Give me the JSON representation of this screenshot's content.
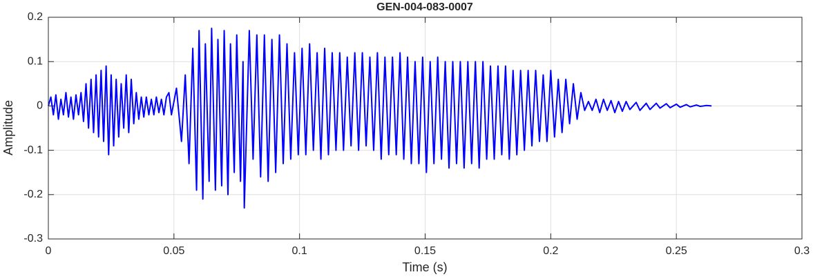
{
  "chart_data": {
    "type": "line",
    "title": "GEN-004-083-0007",
    "xlabel": "Time (s)",
    "ylabel": "Amplitude",
    "color": "#0000ff",
    "grid": true,
    "xlim": [
      0,
      0.3
    ],
    "xticks": [
      0,
      0.05,
      0.1,
      0.15,
      0.2,
      0.25,
      0.3
    ],
    "ylim": [
      -0.3,
      0.2
    ],
    "yticks": [
      -0.3,
      -0.2,
      -0.1,
      0,
      0.1,
      0.2
    ],
    "x": [
      0,
      0.001,
      0.002,
      0.003,
      0.004,
      0.005,
      0.006,
      0.007,
      0.008,
      0.009,
      0.01,
      0.011,
      0.012,
      0.013,
      0.014,
      0.015,
      0.016,
      0.017,
      0.018,
      0.019,
      0.02,
      0.021,
      0.022,
      0.023,
      0.024,
      0.025,
      0.026,
      0.027,
      0.028,
      0.029,
      0.03,
      0.031,
      0.032,
      0.033,
      0.034,
      0.035,
      0.036,
      0.037,
      0.038,
      0.039,
      0.04,
      0.041,
      0.042,
      0.043,
      0.044,
      0.045,
      0.046,
      0.047,
      0.048,
      0.049,
      0.051,
      0.053,
      0.0545,
      0.056,
      0.0575,
      0.059,
      0.06,
      0.0615,
      0.0625,
      0.064,
      0.065,
      0.0665,
      0.0675,
      0.069,
      0.07,
      0.0715,
      0.0725,
      0.074,
      0.075,
      0.0765,
      0.0775,
      0.078,
      0.08,
      0.0815,
      0.083,
      0.0845,
      0.086,
      0.0875,
      0.089,
      0.0905,
      0.092,
      0.0935,
      0.095,
      0.0965,
      0.098,
      0.0995,
      0.101,
      0.1025,
      0.104,
      0.1055,
      0.107,
      0.1085,
      0.11,
      0.1115,
      0.113,
      0.1145,
      0.116,
      0.1175,
      0.119,
      0.1205,
      0.122,
      0.1235,
      0.125,
      0.1265,
      0.128,
      0.1295,
      0.131,
      0.1325,
      0.134,
      0.1355,
      0.137,
      0.1385,
      0.14,
      0.1415,
      0.143,
      0.1445,
      0.146,
      0.1475,
      0.149,
      0.1505,
      0.152,
      0.1535,
      0.155,
      0.1565,
      0.158,
      0.1595,
      0.161,
      0.1625,
      0.164,
      0.1655,
      0.167,
      0.1685,
      0.17,
      0.1715,
      0.173,
      0.1745,
      0.176,
      0.1775,
      0.179,
      0.1805,
      0.182,
      0.1835,
      0.185,
      0.1865,
      0.188,
      0.1895,
      0.191,
      0.1925,
      0.194,
      0.1955,
      0.197,
      0.1985,
      0.2,
      0.2015,
      0.203,
      0.2045,
      0.206,
      0.2075,
      0.209,
      0.2105,
      0.212,
      0.2135,
      0.215,
      0.2165,
      0.218,
      0.2195,
      0.221,
      0.2225,
      0.224,
      0.2255,
      0.227,
      0.2285,
      0.23,
      0.2315,
      0.234,
      0.2355,
      0.238,
      0.2395,
      0.242,
      0.2435,
      0.246,
      0.2475,
      0.25,
      0.2515,
      0.254,
      0.2555,
      0.258,
      0.2595,
      0.262,
      0.264
    ],
    "values": [
      0,
      0.02,
      -0.02,
      0.025,
      -0.03,
      0.015,
      -0.02,
      0.03,
      -0.025,
      0.02,
      -0.03,
      0.025,
      -0.02,
      0.03,
      -0.035,
      0.05,
      -0.05,
      0.06,
      -0.06,
      0.07,
      -0.07,
      0.08,
      -0.08,
      0.09,
      -0.11,
      0.07,
      -0.09,
      0.06,
      -0.07,
      0.05,
      -0.05,
      0.07,
      -0.06,
      0.06,
      -0.04,
      0.03,
      -0.03,
      0.02,
      -0.025,
      0.02,
      -0.02,
      0.015,
      -0.02,
      0.02,
      -0.015,
      0.015,
      -0.02,
      0.02,
      0.03,
      -0.02,
      0.04,
      -0.08,
      0.07,
      -0.13,
      0.13,
      -0.19,
      0.17,
      -0.21,
      0.14,
      -0.17,
      0.175,
      -0.19,
      0.15,
      -0.18,
      0.17,
      -0.2,
      0.14,
      -0.15,
      0.16,
      -0.17,
      0.1,
      -0.23,
      0.17,
      -0.12,
      0.16,
      -0.16,
      0.16,
      -0.17,
      0.15,
      -0.15,
      0.16,
      -0.13,
      0.14,
      -0.12,
      0.12,
      -0.11,
      0.13,
      -0.11,
      0.14,
      -0.1,
      0.12,
      -0.12,
      0.13,
      -0.11,
      0.12,
      -0.1,
      0.12,
      -0.1,
      0.11,
      -0.09,
      0.12,
      -0.1,
      0.12,
      -0.09,
      0.11,
      -0.1,
      0.12,
      -0.12,
      0.11,
      -0.11,
      0.11,
      -0.11,
      0.12,
      -0.12,
      0.11,
      -0.13,
      0.1,
      -0.13,
      0.11,
      -0.15,
      0.1,
      -0.13,
      0.11,
      -0.12,
      0.1,
      -0.14,
      0.1,
      -0.13,
      0.1,
      -0.14,
      0.1,
      -0.13,
      0.1,
      -0.14,
      0.1,
      -0.12,
      0.09,
      -0.12,
      0.09,
      -0.11,
      0.09,
      -0.12,
      0.08,
      -0.11,
      0.08,
      -0.1,
      0.08,
      -0.09,
      0.08,
      -0.08,
      0.07,
      -0.08,
      0.08,
      -0.07,
      0.06,
      -0.06,
      0.06,
      -0.04,
      0.05,
      -0.03,
      0.03,
      -0.01,
      0.01,
      -0.01,
      0.015,
      -0.015,
      0.015,
      -0.01,
      0.012,
      -0.015,
      0.01,
      -0.012,
      0.01,
      -0.008,
      0.008,
      -0.01,
      0.006,
      -0.008,
      0.006,
      -0.005,
      0.005,
      -0.004,
      0.004,
      -0.003,
      0.003,
      -0.002,
      0.002,
      -0.001,
      0.001,
      0
    ]
  }
}
